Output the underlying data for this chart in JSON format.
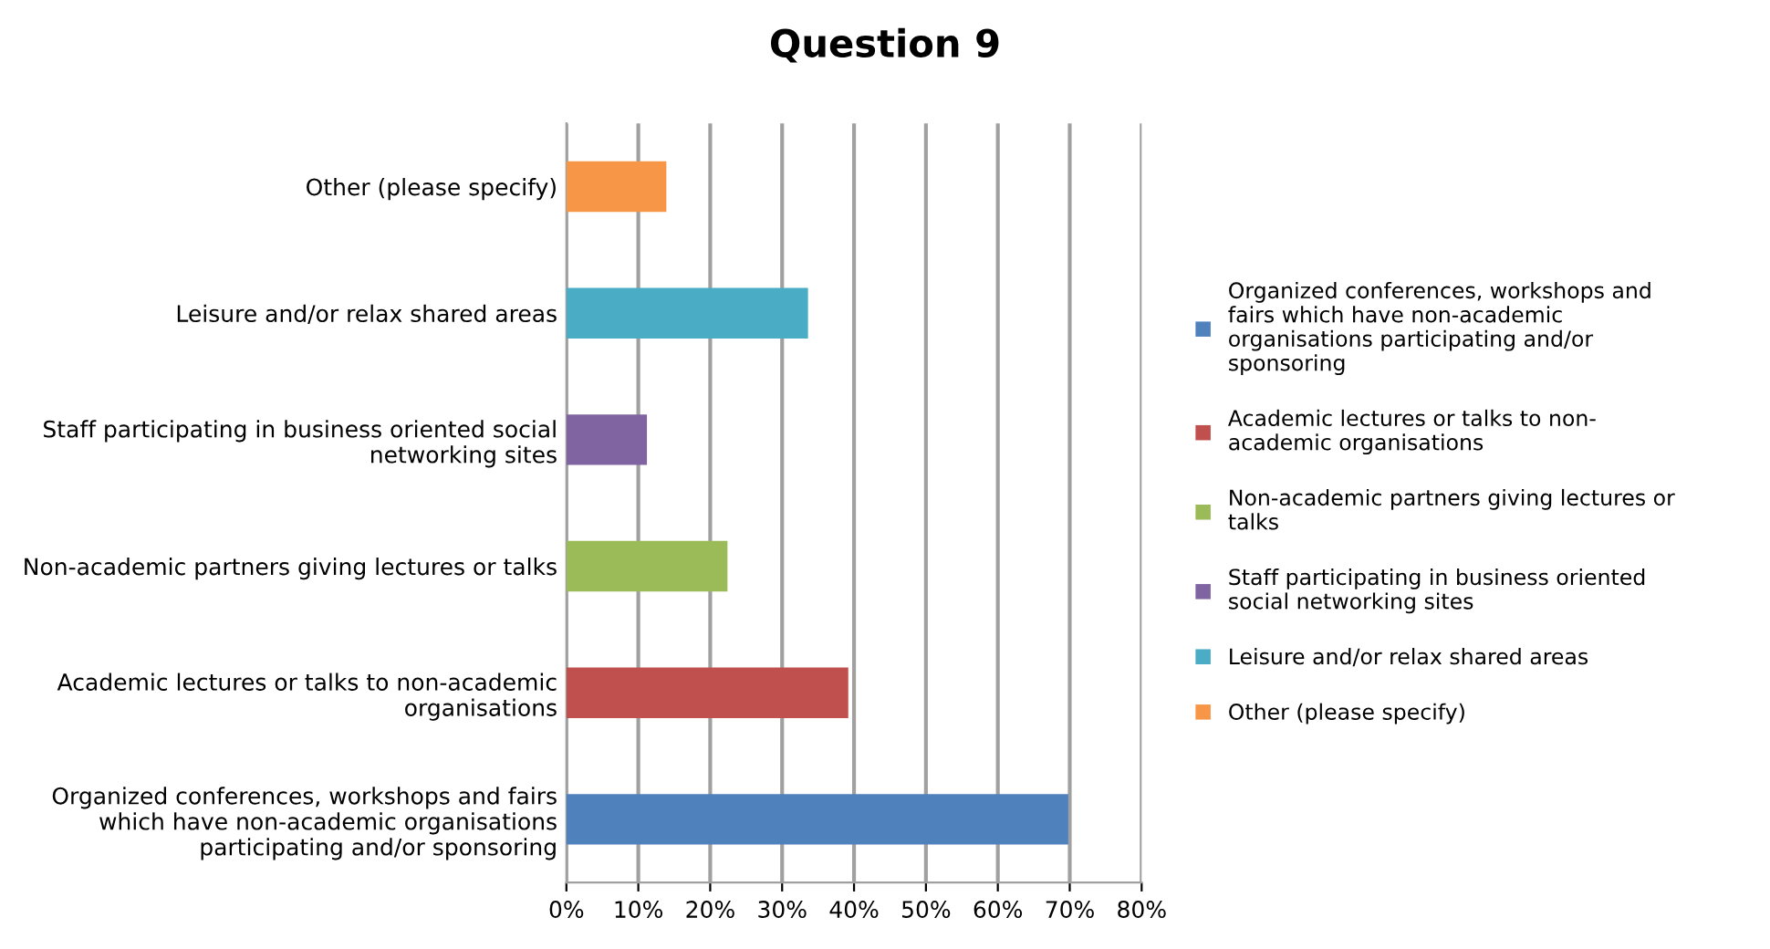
{
  "chart_data": {
    "type": "bar",
    "orientation": "horizontal",
    "title": "Question 9",
    "categories": [
      "Other (please specify)",
      "Leisure and/or relax shared areas",
      "Staff participating in business oriented social networking sites",
      "Non-academic partners giving lectures or talks",
      "Academic lectures or talks to non-academic organisations",
      "Organized conferences, workshops and fairs which have non-academic organisations participating and/or sponsoring"
    ],
    "series": [
      {
        "name": "Organized conferences, workshops and fairs which have non-academic organisations participating and/or sponsoring",
        "color": "#4f81bd",
        "values": [
          null,
          null,
          null,
          null,
          null,
          69.8
        ]
      },
      {
        "name": "Academic lectures or talks to non-academic organisations",
        "color": "#c0504d",
        "values": [
          null,
          null,
          null,
          null,
          39.2,
          null
        ]
      },
      {
        "name": "Non-academic partners giving lectures or talks",
        "color": "#9bbb59",
        "values": [
          null,
          null,
          null,
          22.4,
          null,
          null
        ]
      },
      {
        "name": "Staff participating in business oriented social networking sites",
        "color": "#8064a2",
        "values": [
          null,
          null,
          11.2,
          null,
          null,
          null
        ]
      },
      {
        "name": "Leisure and/or relax shared areas",
        "color": "#4bacc6",
        "values": [
          null,
          33.6,
          null,
          null,
          null,
          null
        ]
      },
      {
        "name": "Other (please specify)",
        "color": "#f79646",
        "values": [
          13.9,
          null,
          null,
          null,
          null,
          null
        ]
      }
    ],
    "xlim": [
      0,
      80
    ],
    "xticks": [
      {
        "value": 0,
        "label": "0%"
      },
      {
        "value": 10,
        "label": "10%"
      },
      {
        "value": 20,
        "label": "20%"
      },
      {
        "value": 30,
        "label": "30%"
      },
      {
        "value": 40,
        "label": "40%"
      },
      {
        "value": 50,
        "label": "50%"
      },
      {
        "value": 60,
        "label": "60%"
      },
      {
        "value": 70,
        "label": "70%"
      },
      {
        "value": 80,
        "label": "80%"
      }
    ],
    "grid": "x",
    "legend": "right"
  }
}
